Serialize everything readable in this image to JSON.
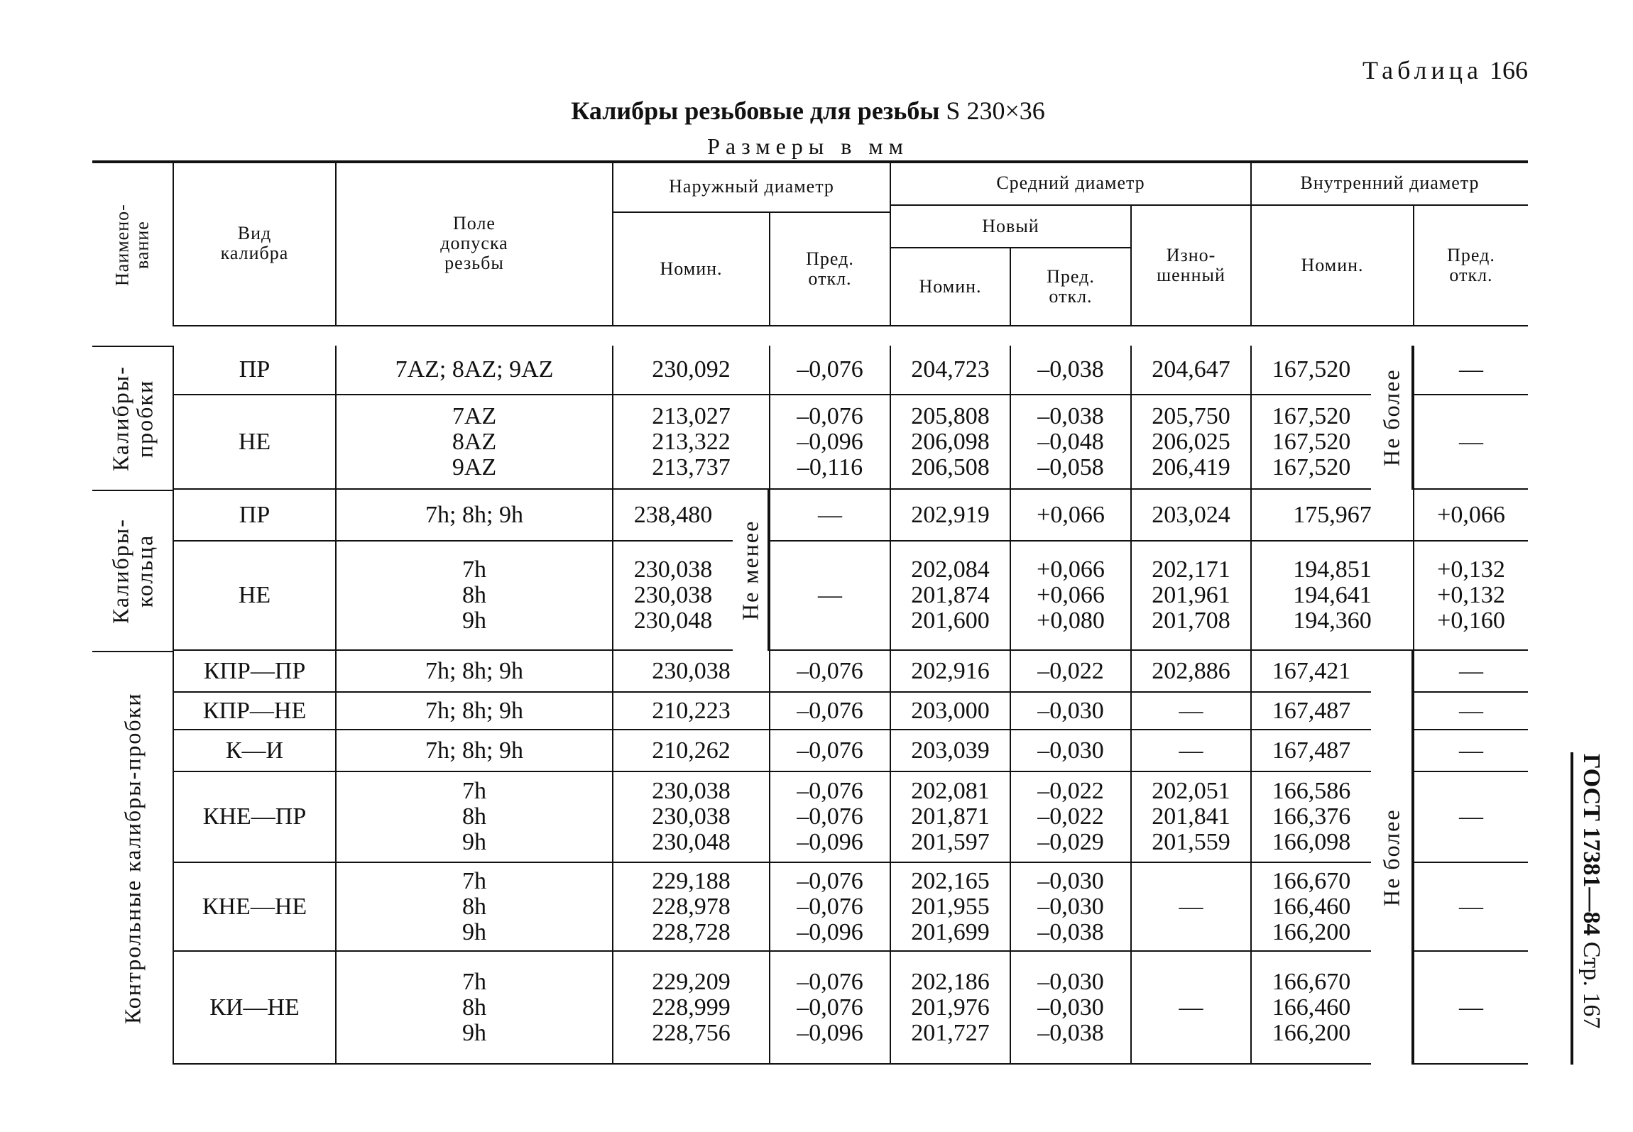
{
  "page": {
    "table_label": "Таблица",
    "table_number": "166",
    "title": "Калибры резьбовые для резьбы",
    "thread": "S 230×36",
    "units": "Размеры в мм",
    "side_standard": "ГОСТ 17381—84",
    "side_page": "Стр. 167"
  },
  "header": {
    "name": "Наимено-\nвание",
    "gauge_type": "Вид\nкалибра",
    "tolerance_field": "Поле\nдопуска\nрезьбы",
    "outer_diameter": "Наружный диаметр",
    "pitch_diameter": "Средний диаметр",
    "inner_diameter": "Внутренний диаметр",
    "new": "Новый",
    "worn": "Изно-\nшенный",
    "nominal": "Номин.",
    "deviation": "Пред.\nоткл."
  },
  "groups": [
    {
      "label": "Калибры-\nпробки"
    },
    {
      "label": "Калибры-\nкольца"
    },
    {
      "label": "Контрольные калибры-пробки"
    }
  ],
  "notes": {
    "not_less": "Не менее",
    "not_more": "Не более"
  },
  "rows": [
    {
      "type": "ПР",
      "tolerance": "7AZ; 8AZ; 9AZ",
      "outer_nom": "230,092",
      "outer_dev": "–0,076",
      "mid_nom": "204,723",
      "mid_dev": "–0,038",
      "worn": "204,647",
      "inner_nom": "167,520",
      "inner_dev": "—"
    },
    {
      "type": "НЕ",
      "tolerance": "7AZ\n8AZ\n9AZ",
      "outer_nom": "213,027\n213,322\n213,737",
      "outer_dev": "–0,076\n–0,096\n–0,116",
      "mid_nom": "205,808\n206,098\n206,508",
      "mid_dev": "–0,038\n–0,048\n–0,058",
      "worn": "205,750\n206,025\n206,419",
      "inner_nom": "167,520\n167,520\n167,520",
      "inner_dev": "—"
    },
    {
      "type": "ПР",
      "tolerance": "7h; 8h; 9h",
      "outer_nom": "238,480",
      "outer_dev": "—",
      "mid_nom": "202,919",
      "mid_dev": "+0,066",
      "worn": "203,024",
      "inner_nom": "175,967",
      "inner_dev": "+0,066"
    },
    {
      "type": "НЕ",
      "tolerance": "7h\n8h\n9h",
      "outer_nom": "230,038\n230,038\n230,048",
      "outer_dev": "—",
      "mid_nom": "202,084\n201,874\n201,600",
      "mid_dev": "+0,066\n+0,066\n+0,080",
      "worn": "202,171\n201,961\n201,708",
      "inner_nom": "194,851\n194,641\n194,360",
      "inner_dev": "+0,132\n+0,132\n+0,160"
    },
    {
      "type": "КПР—ПР",
      "tolerance": "7h; 8h; 9h",
      "outer_nom": "230,038",
      "outer_dev": "–0,076",
      "mid_nom": "202,916",
      "mid_dev": "–0,022",
      "worn": "202,886",
      "inner_nom": "167,421",
      "inner_dev": "—"
    },
    {
      "type": "КПР—НЕ",
      "tolerance": "7h; 8h; 9h",
      "outer_nom": "210,223",
      "outer_dev": "–0,076",
      "mid_nom": "203,000",
      "mid_dev": "–0,030",
      "worn": "—",
      "inner_nom": "167,487",
      "inner_dev": "—"
    },
    {
      "type": "К—И",
      "tolerance": "7h; 8h; 9h",
      "outer_nom": "210,262",
      "outer_dev": "–0,076",
      "mid_nom": "203,039",
      "mid_dev": "–0,030",
      "worn": "—",
      "inner_nom": "167,487",
      "inner_dev": "—"
    },
    {
      "type": "КНЕ—ПР",
      "tolerance": "7h\n8h\n9h",
      "outer_nom": "230,038\n230,038\n230,048",
      "outer_dev": "–0,076\n–0,076\n–0,096",
      "mid_nom": "202,081\n201,871\n201,597",
      "mid_dev": "–0,022\n–0,022\n–0,029",
      "worn": "202,051\n201,841\n201,559",
      "inner_nom": "166,586\n166,376\n166,098",
      "inner_dev": "—"
    },
    {
      "type": "КНЕ—НЕ",
      "tolerance": "7h\n8h\n9h",
      "outer_nom": "229,188\n228,978\n228,728",
      "outer_dev": "–0,076\n–0,076\n–0,096",
      "mid_nom": "202,165\n201,955\n201,699",
      "mid_dev": "–0,030\n–0,030\n–0,038",
      "worn": "—",
      "inner_nom": "166,670\n166,460\n166,200",
      "inner_dev": "—"
    },
    {
      "type": "КИ—НЕ",
      "tolerance": "7h\n8h\n9h",
      "outer_nom": "229,209\n228,999\n228,756",
      "outer_dev": "–0,076\n–0,076\n–0,096",
      "mid_nom": "202,186\n201,976\n201,727",
      "mid_dev": "–0,030\n–0,030\n–0,038",
      "worn": "—",
      "inner_nom": "166,670\n166,460\n166,200",
      "inner_dev": "—"
    }
  ]
}
